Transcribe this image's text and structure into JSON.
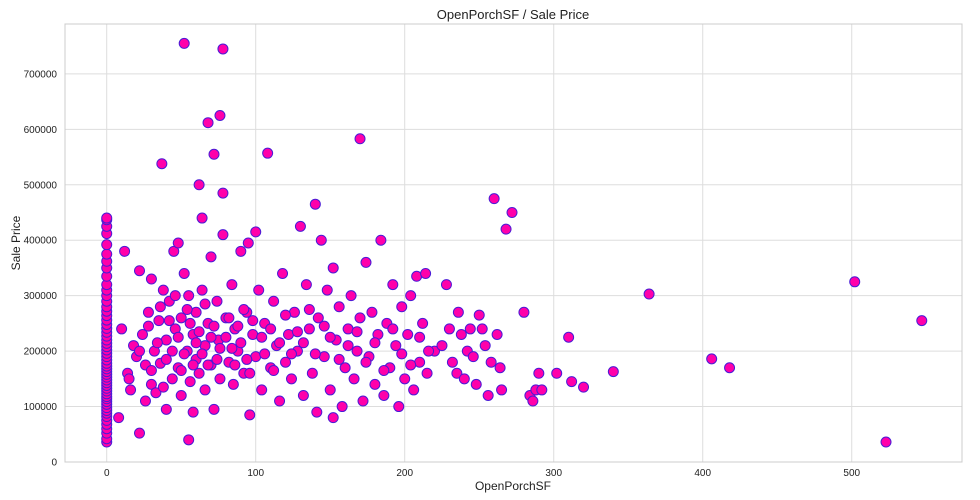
{
  "chart_data": {
    "type": "scatter",
    "title": "OpenPorchSF / Sale Price",
    "xlabel": "OpenPorchSF",
    "ylabel": "Sale Price",
    "xlim": [
      -28,
      574
    ],
    "ylim": [
      0,
      790000
    ],
    "xticks": [
      0,
      100,
      200,
      300,
      400,
      500
    ],
    "yticks": [
      0,
      100000,
      200000,
      300000,
      400000,
      500000,
      600000,
      700000
    ],
    "ytick_labels": [
      "0",
      "100000",
      "200000",
      "300000",
      "400000",
      "500000",
      "600000",
      "700000"
    ],
    "grid": true,
    "marker_fill": "#ff00aa",
    "marker_edge": "#4a1bd6",
    "points": [
      [
        0,
        36000
      ],
      [
        0,
        42000
      ],
      [
        0,
        52000
      ],
      [
        0,
        60000
      ],
      [
        0,
        68000
      ],
      [
        0,
        75000
      ],
      [
        0,
        82000
      ],
      [
        0,
        88000
      ],
      [
        0,
        93000
      ],
      [
        0,
        98000
      ],
      [
        0,
        104000
      ],
      [
        0,
        109000
      ],
      [
        0,
        114000
      ],
      [
        0,
        118000
      ],
      [
        0,
        123000
      ],
      [
        0,
        128000
      ],
      [
        0,
        133000
      ],
      [
        0,
        138000
      ],
      [
        0,
        143000
      ],
      [
        0,
        148000
      ],
      [
        0,
        153000
      ],
      [
        0,
        158000
      ],
      [
        0,
        163000
      ],
      [
        0,
        168000
      ],
      [
        0,
        173000
      ],
      [
        0,
        178000
      ],
      [
        0,
        184000
      ],
      [
        0,
        190000
      ],
      [
        0,
        196000
      ],
      [
        0,
        202000
      ],
      [
        0,
        208000
      ],
      [
        0,
        214000
      ],
      [
        0,
        220000
      ],
      [
        0,
        227000
      ],
      [
        0,
        234000
      ],
      [
        0,
        241000
      ],
      [
        0,
        248000
      ],
      [
        0,
        256000
      ],
      [
        0,
        264000
      ],
      [
        0,
        272000
      ],
      [
        0,
        280000
      ],
      [
        0,
        290000
      ],
      [
        0,
        300000
      ],
      [
        0,
        310000
      ],
      [
        0,
        320000
      ],
      [
        0,
        335000
      ],
      [
        0,
        350000
      ],
      [
        0,
        362000
      ],
      [
        0,
        375000
      ],
      [
        0,
        392000
      ],
      [
        0,
        412000
      ],
      [
        0,
        425000
      ],
      [
        0,
        437000
      ],
      [
        0,
        440000
      ],
      [
        8,
        80000
      ],
      [
        10,
        240000
      ],
      [
        12,
        380000
      ],
      [
        14,
        160000
      ],
      [
        15,
        150000
      ],
      [
        16,
        130000
      ],
      [
        18,
        210000
      ],
      [
        20,
        190000
      ],
      [
        22,
        345000
      ],
      [
        22,
        52000
      ],
      [
        24,
        230000
      ],
      [
        26,
        110000
      ],
      [
        28,
        270000
      ],
      [
        30,
        330000
      ],
      [
        30,
        140000
      ],
      [
        32,
        200000
      ],
      [
        33,
        125000
      ],
      [
        35,
        255000
      ],
      [
        36,
        178000
      ],
      [
        37,
        538000
      ],
      [
        38,
        310000
      ],
      [
        40,
        95000
      ],
      [
        40,
        220000
      ],
      [
        42,
        290000
      ],
      [
        44,
        150000
      ],
      [
        45,
        380000
      ],
      [
        46,
        240000
      ],
      [
        48,
        170000
      ],
      [
        48,
        395000
      ],
      [
        50,
        260000
      ],
      [
        50,
        120000
      ],
      [
        52,
        755000
      ],
      [
        52,
        340000
      ],
      [
        54,
        200000
      ],
      [
        55,
        40000
      ],
      [
        55,
        300000
      ],
      [
        56,
        145000
      ],
      [
        58,
        230000
      ],
      [
        58,
        90000
      ],
      [
        60,
        185000
      ],
      [
        60,
        270000
      ],
      [
        62,
        500000
      ],
      [
        62,
        160000
      ],
      [
        64,
        440000
      ],
      [
        64,
        310000
      ],
      [
        66,
        210000
      ],
      [
        66,
        130000
      ],
      [
        68,
        612000
      ],
      [
        68,
        250000
      ],
      [
        70,
        175000
      ],
      [
        70,
        370000
      ],
      [
        72,
        555000
      ],
      [
        72,
        95000
      ],
      [
        74,
        290000
      ],
      [
        75,
        220000
      ],
      [
        76,
        625000
      ],
      [
        76,
        150000
      ],
      [
        78,
        745000
      ],
      [
        78,
        485000
      ],
      [
        78,
        410000
      ],
      [
        80,
        260000
      ],
      [
        82,
        180000
      ],
      [
        84,
        320000
      ],
      [
        85,
        140000
      ],
      [
        86,
        240000
      ],
      [
        88,
        200000
      ],
      [
        90,
        380000
      ],
      [
        92,
        160000
      ],
      [
        94,
        270000
      ],
      [
        95,
        395000
      ],
      [
        96,
        85000
      ],
      [
        98,
        230000
      ],
      [
        100,
        415000
      ],
      [
        100,
        190000
      ],
      [
        102,
        310000
      ],
      [
        104,
        130000
      ],
      [
        106,
        250000
      ],
      [
        108,
        557000
      ],
      [
        110,
        170000
      ],
      [
        112,
        290000
      ],
      [
        114,
        210000
      ],
      [
        116,
        110000
      ],
      [
        118,
        340000
      ],
      [
        120,
        180000
      ],
      [
        122,
        230000
      ],
      [
        124,
        150000
      ],
      [
        126,
        270000
      ],
      [
        128,
        200000
      ],
      [
        130,
        425000
      ],
      [
        132,
        120000
      ],
      [
        134,
        320000
      ],
      [
        136,
        240000
      ],
      [
        138,
        160000
      ],
      [
        140,
        465000
      ],
      [
        141,
        90000
      ],
      [
        142,
        260000
      ],
      [
        144,
        400000
      ],
      [
        146,
        190000
      ],
      [
        148,
        310000
      ],
      [
        150,
        130000
      ],
      [
        152,
        350000
      ],
      [
        152,
        80000
      ],
      [
        154,
        220000
      ],
      [
        156,
        280000
      ],
      [
        158,
        100000
      ],
      [
        160,
        170000
      ],
      [
        162,
        240000
      ],
      [
        164,
        300000
      ],
      [
        166,
        150000
      ],
      [
        168,
        200000
      ],
      [
        170,
        583000
      ],
      [
        170,
        260000
      ],
      [
        172,
        110000
      ],
      [
        174,
        360000
      ],
      [
        176,
        190000
      ],
      [
        178,
        270000
      ],
      [
        180,
        140000
      ],
      [
        182,
        230000
      ],
      [
        184,
        400000
      ],
      [
        186,
        120000
      ],
      [
        188,
        250000
      ],
      [
        190,
        170000
      ],
      [
        192,
        320000
      ],
      [
        194,
        210000
      ],
      [
        196,
        100000
      ],
      [
        198,
        280000
      ],
      [
        200,
        150000
      ],
      [
        202,
        230000
      ],
      [
        204,
        300000
      ],
      [
        206,
        130000
      ],
      [
        208,
        335000
      ],
      [
        210,
        180000
      ],
      [
        212,
        250000
      ],
      [
        214,
        340000
      ],
      [
        215,
        160000
      ],
      [
        220,
        200000
      ],
      [
        225,
        210000
      ],
      [
        228,
        320000
      ],
      [
        230,
        240000
      ],
      [
        232,
        180000
      ],
      [
        235,
        160000
      ],
      [
        236,
        270000
      ],
      [
        238,
        230000
      ],
      [
        240,
        150000
      ],
      [
        242,
        200000
      ],
      [
        244,
        240000
      ],
      [
        246,
        190000
      ],
      [
        248,
        140000
      ],
      [
        250,
        265000
      ],
      [
        252,
        240000
      ],
      [
        254,
        210000
      ],
      [
        256,
        120000
      ],
      [
        258,
        180000
      ],
      [
        260,
        475000
      ],
      [
        262,
        230000
      ],
      [
        264,
        170000
      ],
      [
        265,
        130000
      ],
      [
        268,
        420000
      ],
      [
        272,
        450000
      ],
      [
        280,
        270000
      ],
      [
        284,
        120000
      ],
      [
        286,
        110000
      ],
      [
        288,
        130000
      ],
      [
        290,
        160000
      ],
      [
        292,
        130000
      ],
      [
        302,
        160000
      ],
      [
        310,
        225000
      ],
      [
        312,
        145000
      ],
      [
        320,
        135000
      ],
      [
        340,
        163000
      ],
      [
        364,
        303000
      ],
      [
        406,
        186000
      ],
      [
        418,
        170000
      ],
      [
        502,
        325000
      ],
      [
        523,
        36000
      ],
      [
        547,
        255000
      ],
      [
        22,
        200000
      ],
      [
        26,
        175000
      ],
      [
        28,
        245000
      ],
      [
        30,
        165000
      ],
      [
        34,
        215000
      ],
      [
        36,
        280000
      ],
      [
        38,
        135000
      ],
      [
        40,
        185000
      ],
      [
        42,
        255000
      ],
      [
        44,
        200000
      ],
      [
        46,
        300000
      ],
      [
        48,
        225000
      ],
      [
        50,
        165000
      ],
      [
        52,
        195000
      ],
      [
        54,
        275000
      ],
      [
        56,
        250000
      ],
      [
        58,
        175000
      ],
      [
        60,
        215000
      ],
      [
        62,
        235000
      ],
      [
        64,
        195000
      ],
      [
        66,
        285000
      ],
      [
        68,
        175000
      ],
      [
        70,
        225000
      ],
      [
        72,
        245000
      ],
      [
        74,
        185000
      ],
      [
        76,
        205000
      ],
      [
        80,
        225000
      ],
      [
        82,
        260000
      ],
      [
        84,
        205000
      ],
      [
        86,
        175000
      ],
      [
        88,
        245000
      ],
      [
        90,
        215000
      ],
      [
        92,
        275000
      ],
      [
        94,
        185000
      ],
      [
        96,
        160000
      ],
      [
        98,
        255000
      ],
      [
        104,
        225000
      ],
      [
        106,
        195000
      ],
      [
        110,
        240000
      ],
      [
        112,
        165000
      ],
      [
        116,
        215000
      ],
      [
        120,
        265000
      ],
      [
        124,
        195000
      ],
      [
        128,
        235000
      ],
      [
        132,
        215000
      ],
      [
        136,
        275000
      ],
      [
        140,
        195000
      ],
      [
        146,
        245000
      ],
      [
        150,
        225000
      ],
      [
        156,
        185000
      ],
      [
        162,
        210000
      ],
      [
        168,
        235000
      ],
      [
        174,
        180000
      ],
      [
        180,
        215000
      ],
      [
        186,
        165000
      ],
      [
        192,
        240000
      ],
      [
        198,
        195000
      ],
      [
        204,
        175000
      ],
      [
        210,
        225000
      ],
      [
        216,
        200000
      ]
    ]
  }
}
